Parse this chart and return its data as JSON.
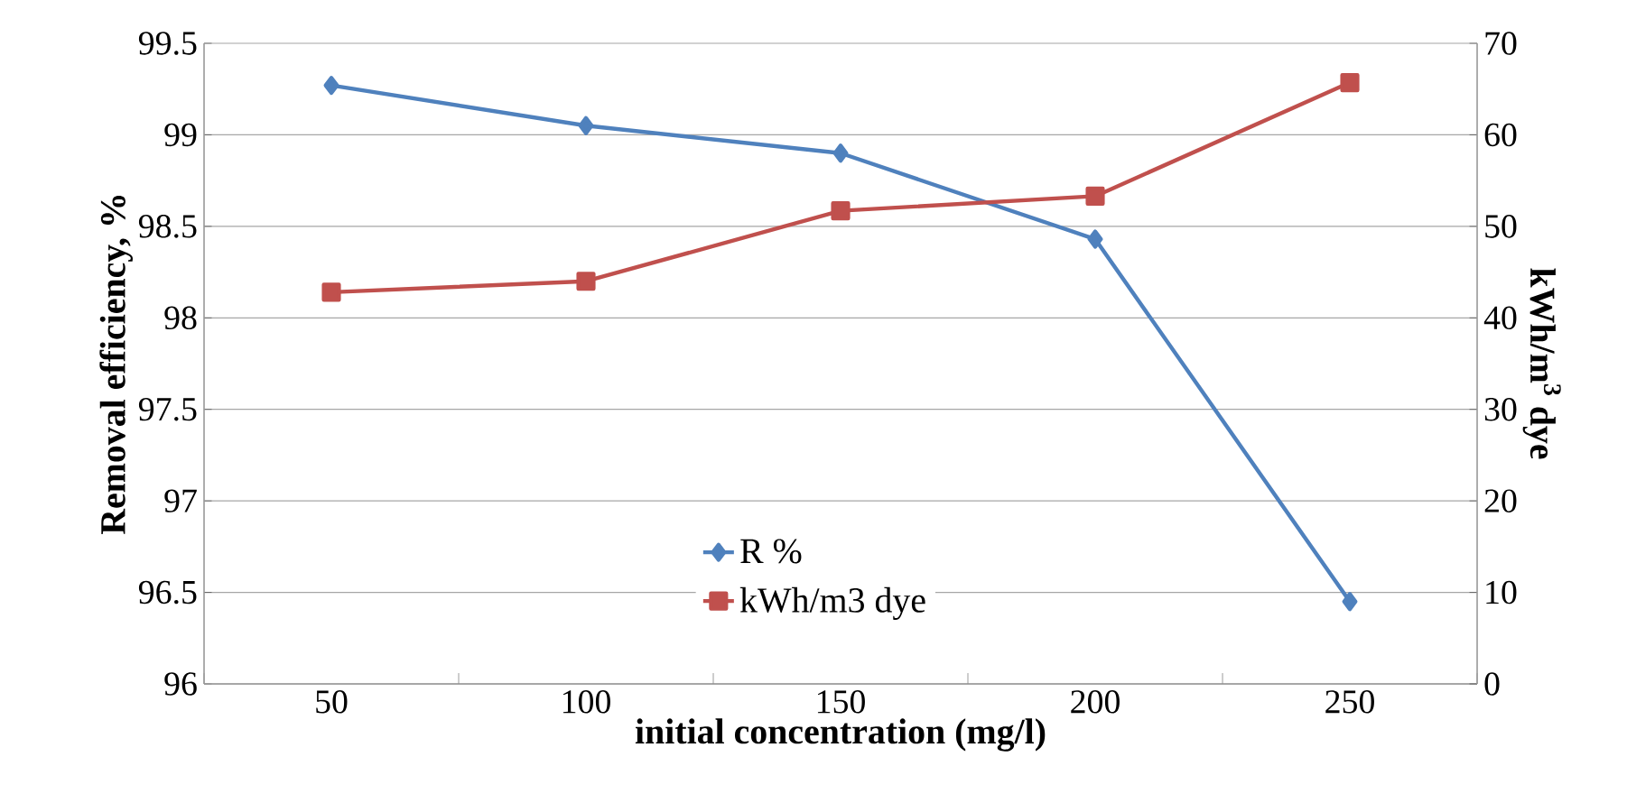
{
  "chart_data": {
    "type": "line",
    "xlabel": "initial concentration (mg/l)",
    "ylabel": "Removal efficiency, %",
    "y2label": "kWh/m$^{3}$ dye",
    "categories": [
      "50",
      "100",
      "150",
      "200",
      "250"
    ],
    "series": [
      {
        "name": "R %",
        "color": "#4f81bd",
        "marker": "diamond",
        "values": [
          99.27,
          99.05,
          98.9,
          98.43,
          96.45
        ]
      },
      {
        "name": "kWh/m3 dye",
        "color": "#c0504d",
        "marker": "square",
        "axis": "y2",
        "values": [
          42.8,
          44.0,
          51.7,
          53.3,
          65.7
        ]
      }
    ],
    "ylim": [
      96,
      99.5
    ],
    "yticks": [
      96,
      96.5,
      97,
      97.5,
      98,
      98.5,
      99,
      99.5
    ],
    "y2lim": [
      0,
      70
    ],
    "y2ticks": [
      0,
      10,
      20,
      30,
      40,
      50,
      60,
      70
    ],
    "grid": "y",
    "legend": "bottom"
  }
}
